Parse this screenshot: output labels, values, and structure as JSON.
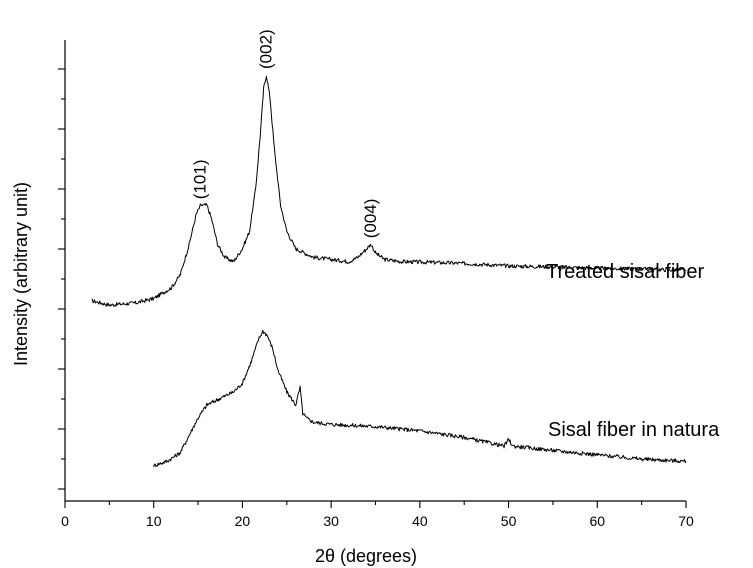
{
  "chart_data": {
    "type": "line",
    "title": "",
    "xlabel": "2θ (degrees)",
    "ylabel": "Intensity (arbitrary unit)",
    "xlim": [
      0,
      70
    ],
    "ylim": [
      0,
      100
    ],
    "y_tick_labels": "none",
    "grid": false,
    "legend": "none (series labeled inline at right)",
    "x_ticks": [
      0,
      10,
      20,
      30,
      40,
      50,
      60,
      70
    ],
    "series": [
      {
        "name": "Treated sisal fiber",
        "x": [
          3,
          5,
          8,
          10,
          12,
          13,
          14,
          14.8,
          15.3,
          16,
          16.5,
          17.2,
          18,
          19,
          20,
          20.8,
          21.5,
          22,
          22.4,
          22.7,
          23.1,
          23.6,
          24.3,
          25,
          26,
          28,
          30,
          32,
          33,
          34,
          34.5,
          35,
          36,
          38,
          42,
          46,
          50,
          55,
          60,
          65,
          70
        ],
        "values": [
          45,
          44,
          44.5,
          45.5,
          48,
          51,
          58,
          65,
          67,
          67,
          64,
          58,
          55,
          54,
          57,
          61,
          71,
          83,
          94,
          97,
          92,
          80,
          67,
          61,
          57,
          55,
          54.5,
          54,
          55,
          57,
          58,
          56,
          54.5,
          54,
          53.8,
          53.5,
          53,
          52.8,
          52.5,
          52.3,
          52
        ]
      },
      {
        "name": "Sisal fiber in natura",
        "x": [
          10,
          11.5,
          13,
          14,
          15,
          16,
          17,
          18,
          19,
          20,
          21,
          21.8,
          22.3,
          22.8,
          23.4,
          24,
          25,
          26,
          26.5,
          26.8,
          27.2,
          28,
          30,
          35,
          40,
          45,
          49.5,
          50,
          50.5,
          55,
          60,
          65,
          70
        ],
        "values": [
          7,
          8,
          10,
          14,
          18,
          21,
          22,
          23,
          24,
          26,
          31,
          36,
          38,
          37,
          34,
          29,
          24,
          21,
          25,
          19,
          18,
          17,
          16.5,
          16,
          15,
          13.5,
          11.5,
          13,
          11.5,
          10.5,
          9.5,
          8.5,
          8
        ]
      }
    ],
    "annotations": [
      {
        "text": "(101)",
        "x": 15.3,
        "y": 67
      },
      {
        "text": "(002)",
        "x": 22.7,
        "y": 97
      },
      {
        "text": "(004)",
        "x": 34.5,
        "y": 58
      }
    ]
  }
}
